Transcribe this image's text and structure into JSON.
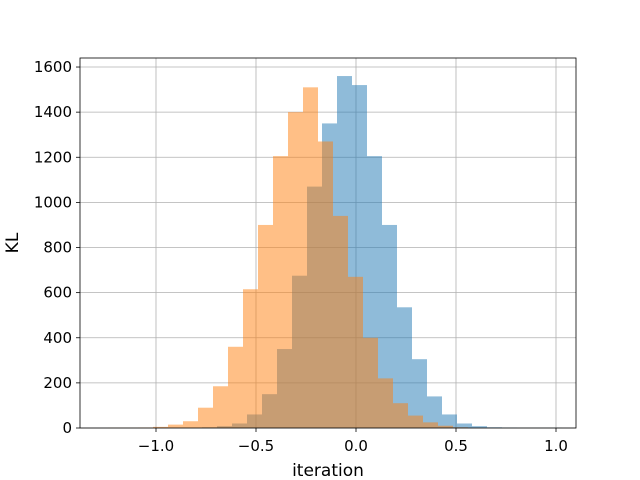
{
  "chart_data": {
    "type": "bar",
    "subtype": "overlapping-histogram",
    "title": "",
    "xlabel": "iteration",
    "ylabel": "KL",
    "xlim": [
      -1.38,
      1.1
    ],
    "ylim": [
      0,
      1640
    ],
    "xticks": [
      -1.0,
      -0.5,
      0.0,
      0.5,
      1.0
    ],
    "xtick_labels": [
      "−1.0",
      "−0.5",
      "0.0",
      "0.5",
      "1.0"
    ],
    "yticks": [
      0,
      200,
      400,
      600,
      800,
      1000,
      1200,
      1400,
      1600
    ],
    "ytick_labels": [
      "0",
      "200",
      "400",
      "600",
      "800",
      "1000",
      "1200",
      "1400",
      "1600"
    ],
    "grid": true,
    "legend": "none",
    "series": [
      {
        "color": "#1f77b4",
        "alpha": 0.5,
        "bins": [
          [
            -0.77,
            -0.695,
            3
          ],
          [
            -0.695,
            -0.62,
            8
          ],
          [
            -0.62,
            -0.545,
            20
          ],
          [
            -0.545,
            -0.47,
            60
          ],
          [
            -0.47,
            -0.395,
            150
          ],
          [
            -0.395,
            -0.32,
            350
          ],
          [
            -0.32,
            -0.245,
            675
          ],
          [
            -0.245,
            -0.17,
            1070
          ],
          [
            -0.17,
            -0.095,
            1350
          ],
          [
            -0.095,
            -0.02,
            1560
          ],
          [
            -0.02,
            0.055,
            1520
          ],
          [
            0.055,
            0.13,
            1205
          ],
          [
            0.13,
            0.205,
            900
          ],
          [
            0.205,
            0.28,
            535
          ],
          [
            0.28,
            0.355,
            305
          ],
          [
            0.355,
            0.43,
            140
          ],
          [
            0.43,
            0.505,
            60
          ],
          [
            0.505,
            0.58,
            20
          ],
          [
            0.58,
            0.655,
            8
          ],
          [
            0.655,
            0.73,
            3
          ],
          [
            0.73,
            0.805,
            2
          ],
          [
            0.805,
            0.88,
            1
          ],
          [
            0.88,
            0.955,
            1
          ],
          [
            0.955,
            1.03,
            1
          ]
        ]
      },
      {
        "color": "#ff7f0e",
        "alpha": 0.5,
        "bins": [
          [
            -1.24,
            -1.165,
            1
          ],
          [
            -1.165,
            -1.09,
            1
          ],
          [
            -1.09,
            -1.015,
            2
          ],
          [
            -1.015,
            -0.94,
            5
          ],
          [
            -0.94,
            -0.865,
            15
          ],
          [
            -0.865,
            -0.79,
            30
          ],
          [
            -0.79,
            -0.715,
            90
          ],
          [
            -0.715,
            -0.64,
            185
          ],
          [
            -0.64,
            -0.565,
            360
          ],
          [
            -0.565,
            -0.49,
            615
          ],
          [
            -0.49,
            -0.415,
            900
          ],
          [
            -0.415,
            -0.34,
            1205
          ],
          [
            -0.34,
            -0.265,
            1400
          ],
          [
            -0.265,
            -0.19,
            1510
          ],
          [
            -0.19,
            -0.115,
            1270
          ],
          [
            -0.115,
            -0.04,
            940
          ],
          [
            -0.04,
            0.035,
            670
          ],
          [
            0.035,
            0.11,
            400
          ],
          [
            0.11,
            0.185,
            220
          ],
          [
            0.185,
            0.26,
            110
          ],
          [
            0.26,
            0.335,
            55
          ],
          [
            0.335,
            0.41,
            25
          ],
          [
            0.41,
            0.485,
            10
          ],
          [
            0.485,
            0.56,
            3
          ]
        ]
      }
    ]
  }
}
